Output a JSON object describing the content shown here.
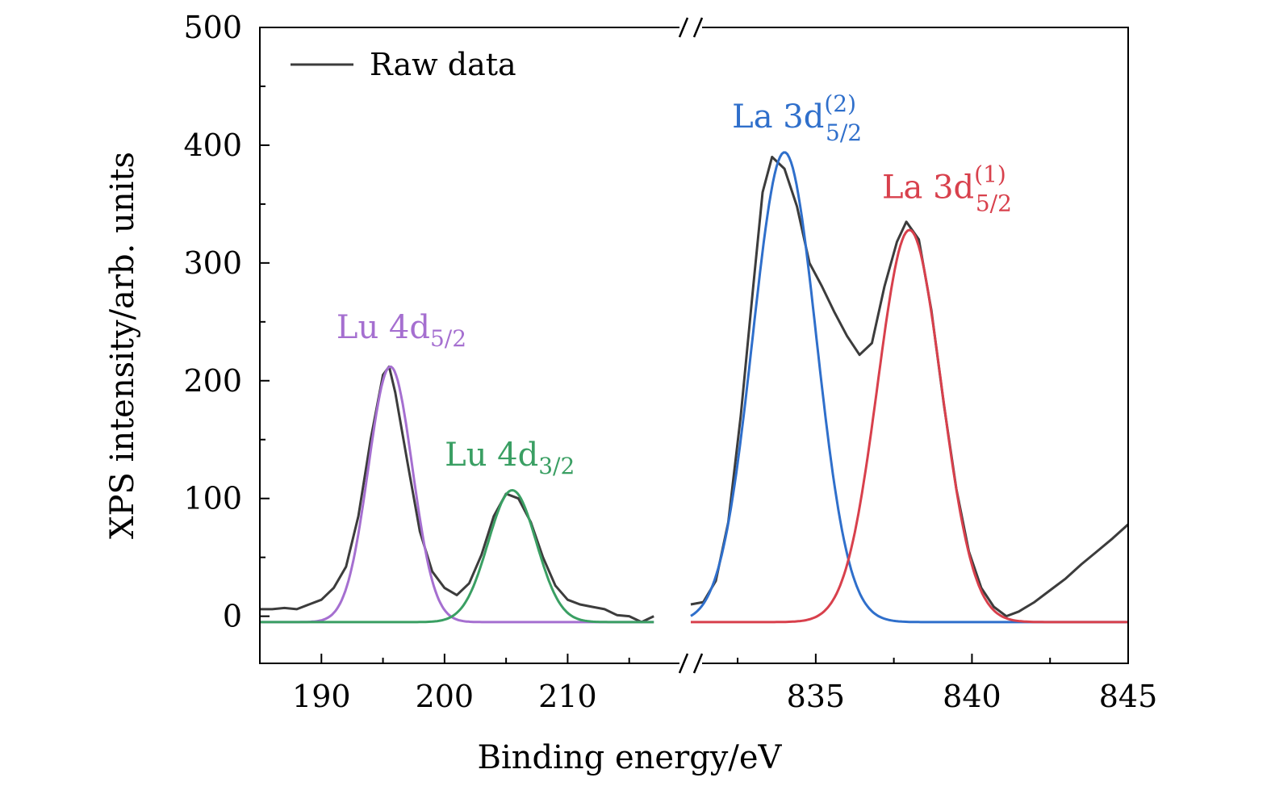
{
  "chart_data": {
    "type": "line",
    "xlabel": "Binding energy/eV",
    "ylabel": "XPS intensity/arb. units",
    "ylim": [
      -40,
      500
    ],
    "y_ticks": [
      0,
      100,
      200,
      300,
      400,
      500
    ],
    "x_axis_broken": true,
    "segments": [
      {
        "xlim": [
          185,
          220
        ],
        "ticks": [
          190,
          200,
          210
        ]
      },
      {
        "xlim": [
          831,
          845
        ],
        "ticks": [
          835,
          840,
          845
        ]
      }
    ],
    "legend": {
      "position": "top-left",
      "entries": [
        "Raw data"
      ]
    },
    "grid": false,
    "series": [
      {
        "name": "Raw data",
        "color": "#3c3c3c",
        "points": [
          [
            185,
            6
          ],
          [
            186,
            6
          ],
          [
            187,
            7
          ],
          [
            188,
            6
          ],
          [
            189,
            10
          ],
          [
            190,
            14
          ],
          [
            191,
            24
          ],
          [
            192,
            42
          ],
          [
            193,
            85
          ],
          [
            194,
            150
          ],
          [
            195,
            205
          ],
          [
            195.5,
            212
          ],
          [
            196,
            190
          ],
          [
            197,
            130
          ],
          [
            198,
            72
          ],
          [
            199,
            38
          ],
          [
            200,
            24
          ],
          [
            201,
            18
          ],
          [
            202,
            28
          ],
          [
            203,
            52
          ],
          [
            204,
            85
          ],
          [
            205,
            104
          ],
          [
            206,
            100
          ],
          [
            207,
            80
          ],
          [
            208,
            50
          ],
          [
            209,
            26
          ],
          [
            210,
            14
          ],
          [
            211,
            10
          ],
          [
            212,
            8
          ],
          [
            213,
            6
          ],
          [
            214,
            1
          ],
          [
            215,
            0
          ],
          [
            216,
            -5
          ],
          [
            217,
            0
          ],
          [
            831,
            10
          ],
          [
            831.4,
            12
          ],
          [
            831.8,
            30
          ],
          [
            832.2,
            80
          ],
          [
            832.6,
            170
          ],
          [
            833,
            280
          ],
          [
            833.3,
            360
          ],
          [
            833.6,
            390
          ],
          [
            834,
            380
          ],
          [
            834.4,
            348
          ],
          [
            834.8,
            300
          ],
          [
            835.2,
            280
          ],
          [
            835.6,
            258
          ],
          [
            836,
            238
          ],
          [
            836.4,
            222
          ],
          [
            836.8,
            232
          ],
          [
            837.2,
            280
          ],
          [
            837.6,
            318
          ],
          [
            837.9,
            335
          ],
          [
            838.3,
            320
          ],
          [
            838.7,
            260
          ],
          [
            839.1,
            180
          ],
          [
            839.5,
            108
          ],
          [
            839.9,
            55
          ],
          [
            840.3,
            24
          ],
          [
            840.7,
            8
          ],
          [
            841.1,
            0
          ],
          [
            841.5,
            4
          ],
          [
            842,
            12
          ],
          [
            842.5,
            22
          ],
          [
            843,
            32
          ],
          [
            843.5,
            44
          ],
          [
            844,
            55
          ],
          [
            844.5,
            66
          ],
          [
            845,
            78
          ]
        ]
      },
      {
        "name": "Lu 4d5/2",
        "color": "#a56fd0",
        "peak": {
          "center": 195.6,
          "height": 212,
          "fwhm": 4.2
        },
        "range": [
          185,
          217
        ]
      },
      {
        "name": "Lu 4d3/2",
        "color": "#3a9f63",
        "peak": {
          "center": 205.5,
          "height": 107,
          "fwhm": 4.6
        },
        "range": [
          185,
          217
        ]
      },
      {
        "name": "La 3d5/2 (2)",
        "color": "#2f6fcb",
        "peak": {
          "center": 834.0,
          "height": 394,
          "fwhm": 2.4
        },
        "range": [
          831,
          845
        ]
      },
      {
        "name": "La 3d5/2 (1)",
        "color": "#d8404c",
        "peak": {
          "center": 838.0,
          "height": 328,
          "fwhm": 2.4
        },
        "range": [
          831,
          845
        ]
      }
    ],
    "annotations": [
      {
        "main": "Lu 4d",
        "sub": "5/2",
        "sup": "",
        "color": "#a56fd0",
        "x": 196.5,
        "y": 236
      },
      {
        "main": "Lu 4d",
        "sub": "3/2",
        "sup": "",
        "color": "#3a9f63",
        "x": 205.3,
        "y": 128
      },
      {
        "main": "La 3d",
        "sub": "5/2",
        "sup": "(2)",
        "color": "#2f6fcb",
        "x": 834.4,
        "y": 415
      },
      {
        "main": "La 3d",
        "sub": "5/2",
        "sup": "(1)",
        "color": "#d8404c",
        "x": 839.2,
        "y": 355
      }
    ]
  }
}
